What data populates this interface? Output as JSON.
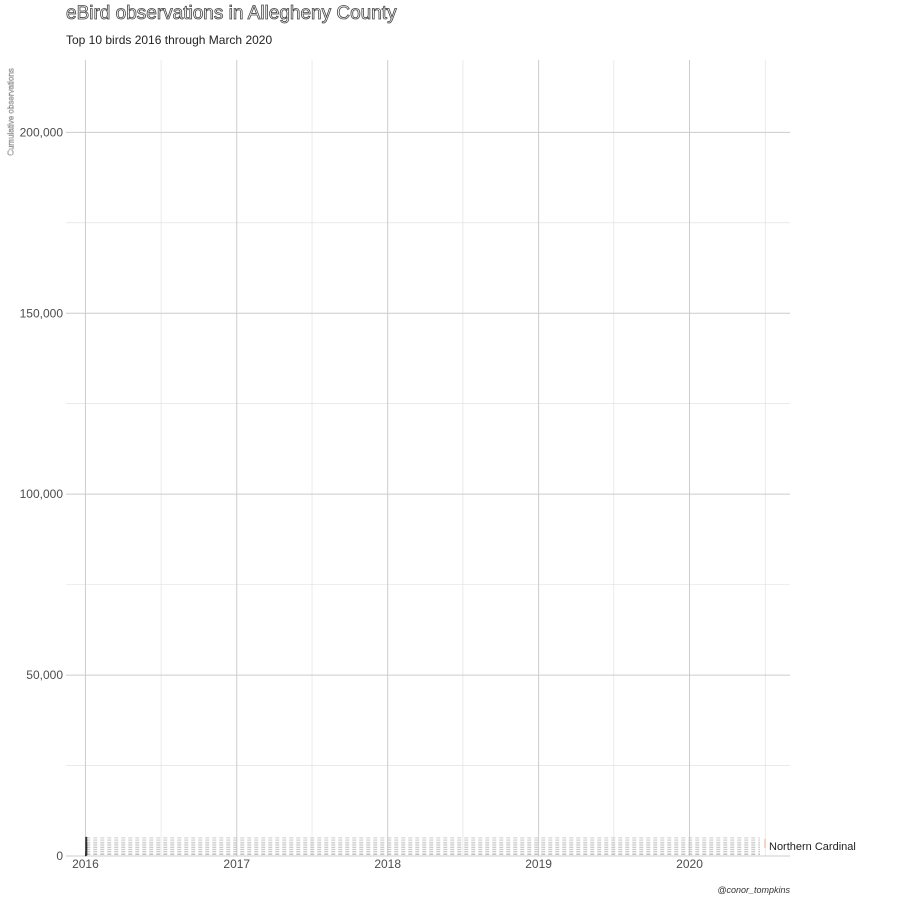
{
  "chart_data": {
    "type": "line",
    "title": "eBird observations in Allegheny County",
    "subtitle": "Top 10 birds 2016 through March 2020",
    "ylabel": "Cumulative observations",
    "xlabel": "",
    "caption": "@conor_tompkins",
    "x_ticks": [
      "2016",
      "2017",
      "2018",
      "2019",
      "2020"
    ],
    "y_ticks": [
      0,
      50000,
      100000,
      150000,
      200000
    ],
    "y_tick_labels": [
      "0",
      "50,000",
      "100,000",
      "150,000",
      "200,000"
    ],
    "xlim": [
      "2015-11-15",
      "2020-08-31"
    ],
    "ylim": [
      0,
      220000
    ],
    "grid": true,
    "current_x": "2016-01-03",
    "label_series": "Northern Cardinal",
    "series": [
      {
        "name": "Northern Cardinal",
        "value": 5000
      },
      {
        "value": 4400
      },
      {
        "value": 3800
      },
      {
        "value": 3300
      },
      {
        "value": 2800
      },
      {
        "value": 2300
      },
      {
        "value": 1800
      },
      {
        "value": 1300
      },
      {
        "value": 800
      },
      {
        "value": 400
      }
    ]
  }
}
